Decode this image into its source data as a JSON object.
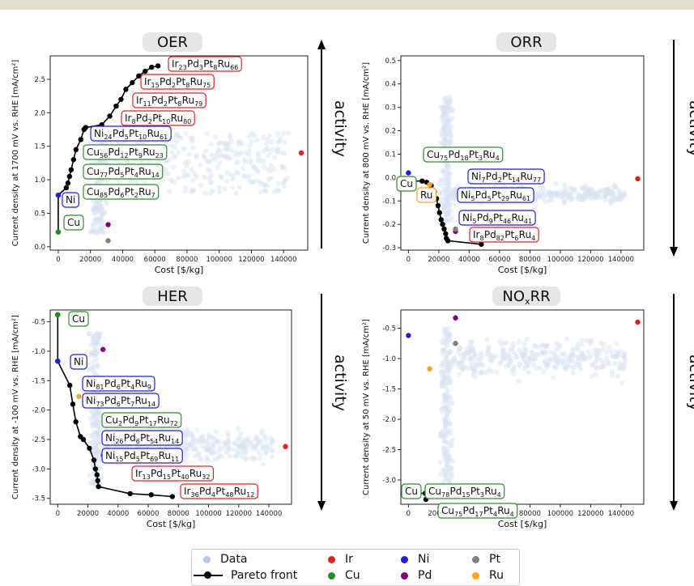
{
  "legend": {
    "data": "Data",
    "pareto": "Pareto front",
    "elements": [
      {
        "label": "Ir",
        "color": "#e8201a"
      },
      {
        "label": "Ni",
        "color": "#1f1fd6"
      },
      {
        "label": "Pt",
        "color": "#808080"
      },
      {
        "label": "Cu",
        "color": "#228b22"
      },
      {
        "label": "Pd",
        "color": "#800080"
      },
      {
        "label": "Ru",
        "color": "#f5a623"
      }
    ]
  },
  "colors": {
    "data": "#b7c9e6",
    "pareto": "#000000",
    "blue_box": "#1f1fd6",
    "green_box": "#2e8b2e",
    "red_box": "#d62728",
    "orange_box": "#f5a623"
  },
  "activity_label": "activity",
  "chart_data": [
    {
      "id": "oer",
      "type": "scatter",
      "title": "OER",
      "xlabel": "Cost [$/kg]",
      "ylabel": "Current density at 1700 mV vs. RHE [mA/cm²]",
      "xlim": [
        -5000,
        155000
      ],
      "ylim": [
        -0.05,
        2.85
      ],
      "xticks": [
        "0",
        "20000",
        "40000",
        "60000",
        "80000",
        "100000",
        "120000",
        "140000"
      ],
      "yticks": [
        "0.0",
        "0.5",
        "1.0",
        "1.5",
        "2.0",
        "2.5"
      ],
      "ytick_values": [
        0,
        0.5,
        1.0,
        1.5,
        2.0,
        2.5
      ],
      "activity_arrow": "up",
      "elements": [
        {
          "name": "Ir",
          "x": 151000,
          "y": 1.4
        },
        {
          "name": "Ni",
          "x": 0,
          "y": 0.77
        },
        {
          "name": "Cu",
          "x": 0,
          "y": 0.22
        },
        {
          "name": "Pd",
          "x": 31000,
          "y": 0.33
        },
        {
          "name": "Pt",
          "x": 31000,
          "y": 0.09
        }
      ],
      "pareto": [
        [
          0,
          0.22
        ],
        [
          0,
          0.77
        ],
        [
          5000,
          0.88
        ],
        [
          6000,
          0.95
        ],
        [
          7000,
          1.05
        ],
        [
          8000,
          1.15
        ],
        [
          9500,
          1.3
        ],
        [
          11000,
          1.45
        ],
        [
          14000,
          1.6
        ],
        [
          16000,
          1.75
        ],
        [
          17000,
          1.78
        ],
        [
          27000,
          1.82
        ],
        [
          32000,
          1.95
        ],
        [
          36000,
          2.1
        ],
        [
          39000,
          2.2
        ],
        [
          42000,
          2.35
        ],
        [
          46000,
          2.45
        ],
        [
          50000,
          2.55
        ],
        [
          54000,
          2.62
        ],
        [
          58000,
          2.68
        ],
        [
          62000,
          2.7
        ]
      ],
      "labels": [
        {
          "text": "Ir23Pd3Pt8Ru66",
          "parts": [
            [
              "Ir",
              "23"
            ],
            [
              "Pd",
              "3"
            ],
            [
              "Pt",
              "8"
            ],
            [
              "Ru",
              "66"
            ]
          ],
          "box": "red",
          "x": 207,
          "y": 79
        },
        {
          "text": "Ir15Pd2Pt8Ru75",
          "parts": [
            [
              "Ir",
              "15"
            ],
            [
              "Pd",
              "2"
            ],
            [
              "Pt",
              "8"
            ],
            [
              "Ru",
              "75"
            ]
          ],
          "box": "red",
          "x": 173,
          "y": 101
        },
        {
          "text": "Ir11Pd2Pt8Ru79",
          "parts": [
            [
              "Ir",
              "11"
            ],
            [
              "Pd",
              "2"
            ],
            [
              "Pt",
              "8"
            ],
            [
              "Ru",
              "79"
            ]
          ],
          "box": "red",
          "x": 163,
          "y": 124
        },
        {
          "text": "Ir8Pd2Pt10Ru80",
          "parts": [
            [
              "Ir",
              "8"
            ],
            [
              "Pd",
              "2"
            ],
            [
              "Pt",
              "10"
            ],
            [
              "Ru",
              "80"
            ]
          ],
          "box": "red",
          "x": 149,
          "y": 146
        },
        {
          "text": "Ni24Pd5Pt10Ru61",
          "parts": [
            [
              "Ni",
              "24"
            ],
            [
              "Pd",
              "5"
            ],
            [
              "Pt",
              "10"
            ],
            [
              "Ru",
              "61"
            ]
          ],
          "box": "blue",
          "x": 111,
          "y": 165
        },
        {
          "text": "Cu56Pd12Pt9Ru23",
          "parts": [
            [
              "Cu",
              "56"
            ],
            [
              "Pd",
              "12"
            ],
            [
              "Pt",
              "9"
            ],
            [
              "Ru",
              "23"
            ]
          ],
          "box": "green",
          "x": 102,
          "y": 188
        },
        {
          "text": "Cu77Pd5Pt4Ru14",
          "parts": [
            [
              "Cu",
              "77"
            ],
            [
              "Pd",
              "5"
            ],
            [
              "Pt",
              "4"
            ],
            [
              "Ru",
              "14"
            ]
          ],
          "box": "green",
          "x": 102,
          "y": 212
        },
        {
          "text": "Cu85Pd6Pt2Ru7",
          "parts": [
            [
              "Cu",
              "85"
            ],
            [
              "Pd",
              "6"
            ],
            [
              "Pt",
              "2"
            ],
            [
              "Ru",
              "7"
            ]
          ],
          "box": "green",
          "x": 102,
          "y": 237
        },
        {
          "text": "Ni",
          "parts": [
            [
              "Ni",
              ""
            ]
          ],
          "box": "blue",
          "x": 76,
          "y": 247
        },
        {
          "text": "Cu",
          "parts": [
            [
              "Cu",
              ""
            ]
          ],
          "box": "green",
          "x": 78,
          "y": 275
        }
      ]
    },
    {
      "id": "orr",
      "type": "scatter",
      "title": "ORR",
      "xlabel": "Cost [$/kg]",
      "ylabel": "Current density at 800 mV vs. RHE [mA/cm²]",
      "xlim": [
        -5000,
        155000
      ],
      "ylim": [
        -0.31,
        0.52
      ],
      "xticks": [
        "0",
        "20000",
        "40000",
        "60000",
        "80000",
        "100000",
        "120000",
        "140000"
      ],
      "yticks": [
        "-0.3",
        "-0.2",
        "-0.1",
        "0.0",
        "0.1",
        "0.2",
        "0.3",
        "0.4",
        "0.5"
      ],
      "ytick_values": [
        -0.3,
        -0.2,
        -0.1,
        0,
        0.1,
        0.2,
        0.3,
        0.4,
        0.5
      ],
      "activity_arrow": "down",
      "elements": [
        {
          "name": "Ir",
          "x": 151000,
          "y": -0.005
        },
        {
          "name": "Ni",
          "x": 0,
          "y": 0.02
        },
        {
          "name": "Cu",
          "x": 0,
          "y": -0.015
        },
        {
          "name": "Pd",
          "x": 31000,
          "y": -0.23
        },
        {
          "name": "Pt",
          "x": 31000,
          "y": -0.22
        },
        {
          "name": "Ru",
          "x": 14000,
          "y": -0.03
        }
      ],
      "pareto": [
        [
          0,
          -0.015
        ],
        [
          9000,
          -0.015
        ],
        [
          12000,
          -0.02
        ],
        [
          15000,
          -0.035
        ],
        [
          17000,
          -0.06
        ],
        [
          18500,
          -0.09
        ],
        [
          19500,
          -0.12
        ],
        [
          20500,
          -0.15
        ],
        [
          21500,
          -0.18
        ],
        [
          22500,
          -0.2
        ],
        [
          23500,
          -0.22
        ],
        [
          24500,
          -0.24
        ],
        [
          25000,
          -0.26
        ],
        [
          26000,
          -0.27
        ],
        [
          48000,
          -0.285
        ]
      ],
      "labels": [
        {
          "text": "Cu75Pd18Pt3Ru4",
          "parts": [
            [
              "Cu",
              "75"
            ],
            [
              "Pd",
              "18"
            ],
            [
              "Pt",
              "3"
            ],
            [
              "Ru",
              "4"
            ]
          ],
          "box": "green",
          "x": 522,
          "y": 191
        },
        {
          "text": "Cu",
          "parts": [
            [
              "Cu",
              ""
            ]
          ],
          "box": "green",
          "x": 489,
          "y": 227
        },
        {
          "text": "Ni7Pd2Pt14Ru77",
          "parts": [
            [
              "Ni",
              "7"
            ],
            [
              "Pd",
              "2"
            ],
            [
              "Pt",
              "14"
            ],
            [
              "Ru",
              "77"
            ]
          ],
          "box": "blue",
          "x": 577,
          "y": 218
        },
        {
          "text": "Ru",
          "parts": [
            [
              "Ru",
              ""
            ]
          ],
          "box": "orange",
          "x": 514,
          "y": 241
        },
        {
          "text": "Ni5Pd5Pt29Ru61",
          "parts": [
            [
              "Ni",
              "5"
            ],
            [
              "Pd",
              "5"
            ],
            [
              "Pt",
              "29"
            ],
            [
              "Ru",
              "61"
            ]
          ],
          "box": "blue",
          "x": 564,
          "y": 241
        },
        {
          "text": "Ni5Pd9Pt46Ru41",
          "parts": [
            [
              "Ni",
              "5"
            ],
            [
              "Pd",
              "9"
            ],
            [
              "Pt",
              "46"
            ],
            [
              "Ru",
              "41"
            ]
          ],
          "box": "blue",
          "x": 566,
          "y": 269
        },
        {
          "text": "Ir8Pd82Pt6Ru4",
          "parts": [
            [
              "Ir",
              "8"
            ],
            [
              "Pd",
              "82"
            ],
            [
              "Pt",
              "6"
            ],
            [
              "Ru",
              "4"
            ]
          ],
          "box": "red",
          "x": 579,
          "y": 290
        }
      ]
    },
    {
      "id": "her",
      "type": "scatter",
      "title": "HER",
      "xlabel": "Cost [$/kg]",
      "ylabel": "Current density at -100 mV vs. RHE [mA/cm²]",
      "xlim": [
        -5000,
        155000
      ],
      "ylim": [
        -3.6,
        -0.3
      ],
      "xticks": [
        "0",
        "20000",
        "40000",
        "60000",
        "80000",
        "100000",
        "120000",
        "140000"
      ],
      "yticks": [
        "-3.5",
        "-3.0",
        "-2.5",
        "-2.0",
        "-1.5",
        "-1.0",
        "-0.5"
      ],
      "ytick_values": [
        -3.5,
        -3,
        -2.5,
        -2,
        -1.5,
        -1,
        -0.5
      ],
      "activity_arrow": "down",
      "elements": [
        {
          "name": "Ir",
          "x": 151000,
          "y": -2.62
        },
        {
          "name": "Ni",
          "x": 0,
          "y": -1.17
        },
        {
          "name": "Cu",
          "x": 0,
          "y": -0.38
        },
        {
          "name": "Pd",
          "x": 30000,
          "y": -0.97
        },
        {
          "name": "Pt",
          "x": 30000,
          "y": -2.77
        },
        {
          "name": "Ru",
          "x": 14000,
          "y": -1.77
        }
      ],
      "pareto": [
        [
          0,
          -0.38
        ],
        [
          0,
          -1.17
        ],
        [
          8000,
          -1.58
        ],
        [
          10000,
          -1.9
        ],
        [
          12000,
          -2.2
        ],
        [
          15000,
          -2.45
        ],
        [
          17000,
          -2.5
        ],
        [
          21000,
          -2.65
        ],
        [
          24000,
          -2.85
        ],
        [
          25000,
          -3.0
        ],
        [
          26000,
          -3.1
        ],
        [
          26500,
          -3.2
        ],
        [
          27000,
          -3.3
        ],
        [
          48000,
          -3.42
        ],
        [
          62000,
          -3.44
        ],
        [
          76000,
          -3.47
        ]
      ],
      "labels": [
        {
          "text": "Cu",
          "parts": [
            [
              "Cu",
              ""
            ]
          ],
          "box": "green",
          "x": 84,
          "y": 394
        },
        {
          "text": "Ni",
          "parts": [
            [
              "Ni",
              ""
            ]
          ],
          "box": "blue",
          "x": 86,
          "y": 447
        },
        {
          "text": "Ni81Pd6Pt4Ru9",
          "parts": [
            [
              "Ni",
              "81"
            ],
            [
              "Pd",
              "6"
            ],
            [
              "Pt",
              "4"
            ],
            [
              "Ru",
              "9"
            ]
          ],
          "box": "blue",
          "x": 101,
          "y": 474
        },
        {
          "text": "Ni73Pd6Pt7Ru14",
          "parts": [
            [
              "Ni",
              "73"
            ],
            [
              "Pd",
              "6"
            ],
            [
              "Pt",
              "7"
            ],
            [
              "Ru",
              "14"
            ]
          ],
          "box": "blue",
          "x": 101,
          "y": 495
        },
        {
          "text": "Cu2Pd9Pt17Ru72",
          "parts": [
            [
              "Cu",
              "2"
            ],
            [
              "Pd",
              "9"
            ],
            [
              "Pt",
              "17"
            ],
            [
              "Ru",
              "72"
            ]
          ],
          "box": "green",
          "x": 125,
          "y": 519
        },
        {
          "text": "Ni26Pd6Pt54Ru14",
          "parts": [
            [
              "Ni",
              "26"
            ],
            [
              "Pd",
              "6"
            ],
            [
              "Pt",
              "54"
            ],
            [
              "Ru",
              "14"
            ]
          ],
          "box": "blue",
          "x": 125,
          "y": 541
        },
        {
          "text": "Ni15Pd5Pt69Ru11",
          "parts": [
            [
              "Ni",
              "15"
            ],
            [
              "Pd",
              "5"
            ],
            [
              "Pt",
              "69"
            ],
            [
              "Ru",
              "11"
            ]
          ],
          "box": "blue",
          "x": 125,
          "y": 563
        },
        {
          "text": "Ir13Pd15Pt40Ru32",
          "parts": [
            [
              "Ir",
              "13"
            ],
            [
              "Pd",
              "15"
            ],
            [
              "Pt",
              "40"
            ],
            [
              "Ru",
              "32"
            ]
          ],
          "box": "red",
          "x": 162,
          "y": 585
        },
        {
          "text": "Ir36Pd4Pt48Ru12",
          "parts": [
            [
              "Ir",
              "36"
            ],
            [
              "Pd",
              "4"
            ],
            [
              "Pt",
              "48"
            ],
            [
              "Ru",
              "12"
            ]
          ],
          "box": "red",
          "x": 222,
          "y": 607
        }
      ]
    },
    {
      "id": "noxrr",
      "type": "scatter",
      "title": "NOxRR",
      "xlabel": "Cost [$/kg]",
      "ylabel": "Current density at 50 mV vs. RHE [mA/cm²]",
      "xlim": [
        -5000,
        155000
      ],
      "ylim": [
        -3.4,
        -0.2
      ],
      "xticks": [
        "0",
        "20000",
        "40000",
        "60000",
        "80000",
        "100000",
        "120000",
        "140000"
      ],
      "yticks": [
        "-3.0",
        "-2.5",
        "-2.0",
        "-1.5",
        "-1.0",
        "-0.5"
      ],
      "ytick_values": [
        -3,
        -2.5,
        -2,
        -1.5,
        -1,
        -0.5
      ],
      "activity_arrow": "down",
      "elements": [
        {
          "name": "Ir",
          "x": 151000,
          "y": -0.4
        },
        {
          "name": "Ni",
          "x": 0,
          "y": -0.62
        },
        {
          "name": "Cu",
          "x": 0,
          "y": -3.22
        },
        {
          "name": "Pd",
          "x": 31000,
          "y": -0.33
        },
        {
          "name": "Pt",
          "x": 31000,
          "y": -0.75
        },
        {
          "name": "Ru",
          "x": 14000,
          "y": -1.17
        }
      ],
      "pareto": [
        [
          0,
          -3.22
        ],
        [
          11000,
          -3.22
        ],
        [
          11500,
          -3.32
        ]
      ],
      "labels": [
        {
          "text": "Cu",
          "parts": [
            [
              "Cu",
              ""
            ]
          ],
          "box": "green",
          "x": 495,
          "y": 607
        },
        {
          "text": "Cu78Pd15Pt3Ru4",
          "parts": [
            [
              "Cu",
              "78"
            ],
            [
              "Pd",
              "15"
            ],
            [
              "Pt",
              "3"
            ],
            [
              "Ru",
              "4"
            ]
          ],
          "box": "green",
          "x": 524,
          "y": 607
        },
        {
          "text": "Cu75Pd17Pt4Ru4",
          "parts": [
            [
              "Cu",
              "75"
            ],
            [
              "Pd",
              "17"
            ],
            [
              "Pt",
              "4"
            ],
            [
              "Ru",
              "4"
            ]
          ],
          "box": "green",
          "x": 540,
          "y": 631
        }
      ]
    }
  ]
}
